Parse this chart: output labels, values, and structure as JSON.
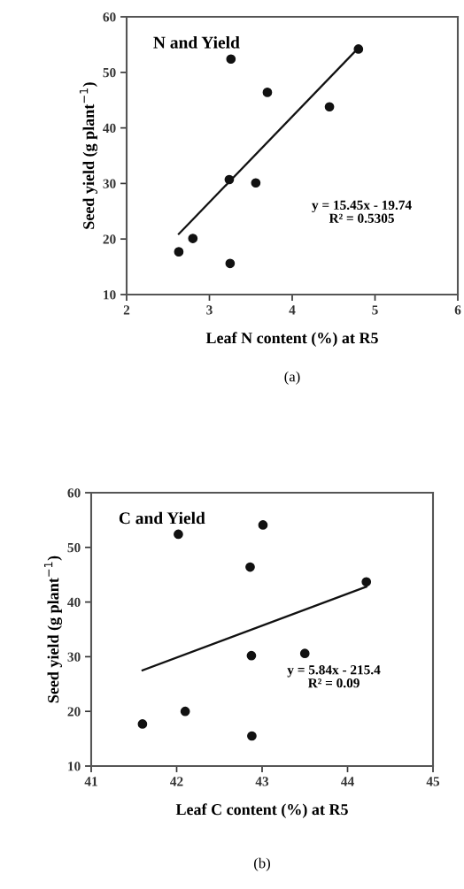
{
  "chart_data": [
    {
      "type": "scatter",
      "title": "N and Yield",
      "xlabel": "Leaf N content (%) at R5",
      "ylabel": "Seed yield (g plant$^{−1}$)",
      "annotations": [
        "y = 15.45x - 19.74\nR² = 0.5305",
        "(a)"
      ],
      "xlim": [
        2,
        6
      ],
      "ylim": [
        10,
        60
      ],
      "xticks": [
        2,
        3,
        4,
        5,
        6
      ],
      "yticks": [
        10,
        20,
        30,
        40,
        50,
        60
      ],
      "grid": false,
      "marker": "circle",
      "series": [
        {
          "color": "#111111",
          "x": [
            2.63,
            2.8,
            3.25,
            3.24,
            3.56,
            3.26,
            3.7,
            4.45,
            4.8
          ],
          "values": [
            17.7,
            20.1,
            15.6,
            30.7,
            30.1,
            52.4,
            46.4,
            43.8,
            54.2
          ]
        },
        {
          "type": "line",
          "marker": "none",
          "color": "#111111",
          "x": [
            2.63,
            4.8
          ],
          "values": [
            20.9,
            54.4
          ]
        }
      ]
    },
    {
      "type": "scatter",
      "title": "C and Yield",
      "xlabel": "Leaf C content (%) at R5",
      "ylabel": "Seed yield (g plant$^{−1}$)",
      "annotations": [
        "y = 5.84x - 215.4\nR² = 0.09",
        "(b)"
      ],
      "xlim": [
        41,
        45
      ],
      "ylim": [
        10,
        60
      ],
      "xticks": [
        41,
        42,
        43,
        44,
        45
      ],
      "yticks": [
        10,
        20,
        30,
        40,
        50,
        60
      ],
      "grid": false,
      "marker": "circle",
      "series": [
        {
          "color": "#111111",
          "x": [
            41.6,
            42.1,
            42.88,
            42.875,
            43.5,
            42.02,
            43.01,
            42.86,
            44.22
          ],
          "values": [
            17.7,
            20.0,
            15.5,
            30.2,
            30.6,
            52.4,
            54.1,
            46.4,
            43.7
          ]
        },
        {
          "type": "line",
          "marker": "none",
          "color": "#111111",
          "x": [
            41.6,
            44.22
          ],
          "values": [
            27.5,
            42.8
          ]
        }
      ]
    }
  ]
}
